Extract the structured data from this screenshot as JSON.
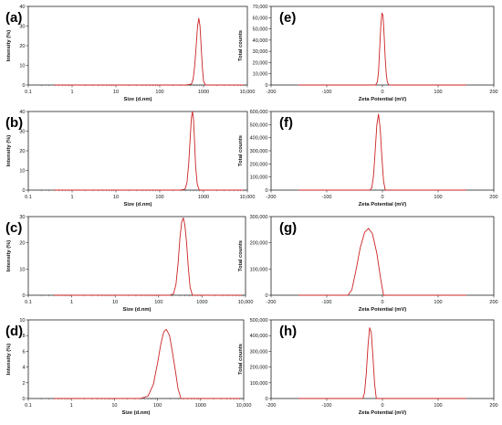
{
  "chart_data": [
    {
      "type": "line",
      "panel_label": "(a)",
      "xlabel": "Size (d.nm)",
      "ylabel": "Intensity (%)",
      "xscale": "log",
      "xlim": [
        0.1,
        10000
      ],
      "ylim": [
        0,
        40
      ],
      "xticks": [
        0.1,
        1,
        10,
        100,
        1000,
        10000
      ],
      "xtick_labels": [
        "0.1",
        "1",
        "10",
        "100",
        "1000",
        "10,000"
      ],
      "yticks": [
        0,
        10,
        20,
        30,
        40
      ],
      "ytick_labels": [
        "0",
        "10",
        "20",
        "30",
        "40"
      ],
      "line_color": "#cc2222",
      "series": [
        {
          "x": [
            0.4,
            400,
            530,
            580,
            630,
            680,
            730,
            780,
            830,
            880,
            940,
            1000,
            1100,
            2000,
            8000
          ],
          "y": [
            0,
            0,
            0.5,
            3,
            10,
            20,
            30,
            34,
            30,
            20,
            9,
            2,
            0,
            0,
            0
          ]
        }
      ]
    },
    {
      "type": "line",
      "panel_label": "(b)",
      "xlabel": "Size (d.nm)",
      "ylabel": "Intensity (%)",
      "xscale": "log",
      "xlim": [
        0.1,
        10000
      ],
      "ylim": [
        0,
        40
      ],
      "xticks": [
        0.1,
        1,
        10,
        100,
        1000,
        10000
      ],
      "xtick_labels": [
        "0.1",
        "1",
        "10",
        "100",
        "1000",
        "10,000"
      ],
      "yticks": [
        0,
        10,
        20,
        30,
        40
      ],
      "ytick_labels": [
        "0",
        "10",
        "20",
        "30",
        "40"
      ],
      "line_color": "#cc2222",
      "series": [
        {
          "x": [
            0.4,
            300,
            380,
            420,
            460,
            500,
            530,
            560,
            590,
            620,
            660,
            720,
            800,
            2000,
            8000
          ],
          "y": [
            0,
            0,
            0.5,
            4,
            14,
            28,
            37,
            40,
            36,
            26,
            12,
            3,
            0,
            0,
            0
          ]
        }
      ]
    },
    {
      "type": "line",
      "panel_label": "(c)",
      "xlabel": "Size (d.nm)",
      "ylabel": "Intensity (%)",
      "xscale": "log",
      "xlim": [
        0.1,
        10000
      ],
      "ylim": [
        0,
        30
      ],
      "xticks": [
        0.1,
        1,
        10,
        100,
        1000,
        10000
      ],
      "xtick_labels": [
        "0.1",
        "1",
        "10",
        "100",
        "1000",
        "10,000"
      ],
      "yticks": [
        0,
        10,
        20,
        30
      ],
      "ytick_labels": [
        "0",
        "10",
        "20",
        "30"
      ],
      "line_color": "#cc2222",
      "series": [
        {
          "x": [
            0.4,
            180,
            220,
            250,
            280,
            310,
            340,
            370,
            400,
            440,
            480,
            530,
            600,
            2000,
            8000
          ],
          "y": [
            0,
            0,
            0.5,
            4,
            12,
            22,
            28,
            29.5,
            27,
            20,
            11,
            3,
            0,
            0,
            0
          ]
        }
      ]
    },
    {
      "type": "line",
      "panel_label": "(d)",
      "xlabel": "Size (d.nm)",
      "ylabel": "Intensity (%)",
      "xscale": "log",
      "xlim": [
        0.1,
        10000
      ],
      "ylim": [
        0,
        10
      ],
      "xticks": [
        0.1,
        1,
        10,
        100,
        1000,
        10000
      ],
      "xtick_labels": [
        "0.1",
        "1",
        "10",
        "100",
        "1000",
        "10,000"
      ],
      "yticks": [
        0,
        2,
        4,
        6,
        8,
        10
      ],
      "ytick_labels": [
        "0",
        "2",
        "4",
        "6",
        "8",
        "10"
      ],
      "line_color": "#cc2222",
      "series": [
        {
          "x": [
            0.4,
            40,
            60,
            80,
            100,
            120,
            140,
            160,
            190,
            220,
            260,
            300,
            350,
            1000,
            8000
          ],
          "y": [
            0,
            0,
            0.3,
            1.8,
            4.5,
            7,
            8.5,
            8.8,
            8,
            6,
            3.5,
            1.2,
            0,
            0,
            0
          ]
        }
      ]
    },
    {
      "type": "line",
      "panel_label": "(e)",
      "xlabel": "Zeta Potential (mV)",
      "ylabel": "Total counts",
      "xscale": "linear",
      "xlim": [
        -200,
        200
      ],
      "ylim": [
        0,
        70000
      ],
      "xticks": [
        -200,
        -100,
        0,
        100,
        200
      ],
      "xtick_labels": [
        "-200",
        "-100",
        "0",
        "100",
        "200"
      ],
      "yticks": [
        0,
        10000,
        20000,
        30000,
        40000,
        50000,
        60000,
        70000
      ],
      "ytick_labels": [
        "0",
        "10,000",
        "20,000",
        "30,000",
        "40,000",
        "50,000",
        "60,000",
        "70,000"
      ],
      "line_color": "#cc2222",
      "series": [
        {
          "x": [
            -150,
            -12,
            -9,
            -7,
            -5,
            -3,
            -1,
            1,
            3,
            5,
            7,
            9,
            12,
            150
          ],
          "y": [
            0,
            0,
            3000,
            12000,
            32000,
            52000,
            64000,
            62000,
            45000,
            24000,
            9000,
            2000,
            0,
            0
          ]
        }
      ]
    },
    {
      "type": "line",
      "panel_label": "(f)",
      "xlabel": "Zeta Potential (mV)",
      "ylabel": "Total counts",
      "xscale": "linear",
      "xlim": [
        -200,
        200
      ],
      "ylim": [
        0,
        600000
      ],
      "xticks": [
        -200,
        -100,
        0,
        100,
        200
      ],
      "xtick_labels": [
        "-200",
        "-100",
        "0",
        "100",
        "200"
      ],
      "yticks": [
        0,
        100000,
        200000,
        300000,
        400000,
        500000,
        600000
      ],
      "ytick_labels": [
        "0",
        "100,000",
        "200,000",
        "300,000",
        "400,000",
        "500,000",
        "600,000"
      ],
      "line_color": "#cc2222",
      "series": [
        {
          "x": [
            -150,
            -22,
            -19,
            -16,
            -13,
            -10,
            -7,
            -4,
            -1,
            2,
            5,
            150
          ],
          "y": [
            0,
            0,
            20000,
            110000,
            300000,
            500000,
            580000,
            470000,
            250000,
            70000,
            0,
            0
          ]
        }
      ]
    },
    {
      "type": "line",
      "panel_label": "(g)",
      "xlabel": "Zeta Potential (mV)",
      "ylabel": "Total counts",
      "xscale": "linear",
      "xlim": [
        -200,
        200
      ],
      "ylim": [
        0,
        300000
      ],
      "xticks": [
        -200,
        -100,
        0,
        100,
        200
      ],
      "xtick_labels": [
        "-200",
        "-100",
        "0",
        "100",
        "200"
      ],
      "yticks": [
        0,
        100000,
        200000,
        300000
      ],
      "ytick_labels": [
        "0",
        "100,000",
        "200,000",
        "300,000"
      ],
      "line_color": "#cc2222",
      "series": [
        {
          "x": [
            -150,
            -62,
            -55,
            -48,
            -40,
            -32,
            -25,
            -18,
            -10,
            -3,
            2,
            150
          ],
          "y": [
            0,
            0,
            20000,
            90000,
            180000,
            240000,
            255000,
            235000,
            160000,
            60000,
            0,
            0
          ]
        }
      ]
    },
    {
      "type": "line",
      "panel_label": "(h)",
      "xlabel": "Zeta Potential (mV)",
      "ylabel": "Total counts",
      "xscale": "linear",
      "xlim": [
        -200,
        200
      ],
      "ylim": [
        0,
        500000
      ],
      "xticks": [
        -200,
        -100,
        0,
        100,
        200
      ],
      "xtick_labels": [
        "-200",
        "-100",
        "0",
        "100",
        "200"
      ],
      "yticks": [
        0,
        100000,
        200000,
        300000,
        400000,
        500000
      ],
      "ytick_labels": [
        "0",
        "100,000",
        "200,000",
        "300,000",
        "400,000",
        "500,000"
      ],
      "line_color": "#cc2222",
      "series": [
        {
          "x": [
            -150,
            -35,
            -32,
            -29,
            -26,
            -23,
            -20,
            -17,
            -14,
            -11,
            150
          ],
          "y": [
            0,
            0,
            40000,
            160000,
            330000,
            450000,
            420000,
            260000,
            90000,
            0,
            0
          ]
        }
      ]
    }
  ]
}
